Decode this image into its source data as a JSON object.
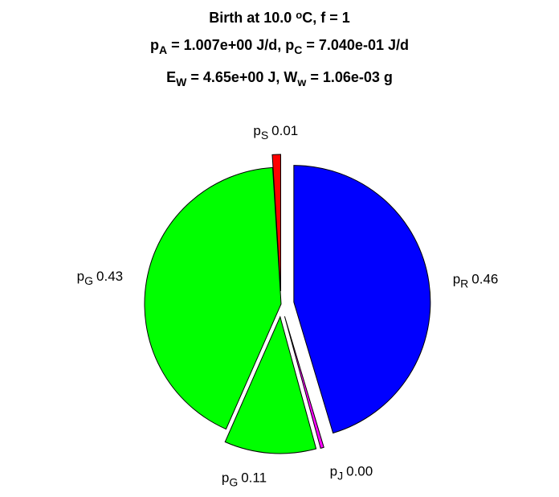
{
  "chart_data": {
    "type": "pie",
    "title": [
      [
        {
          "text": "Birth at 10.0 "
        },
        {
          "text": "o",
          "shift": "sup"
        },
        {
          "text": "C, f = 1"
        }
      ],
      [
        {
          "text": "p"
        },
        {
          "text": "A",
          "shift": "sub"
        },
        {
          "text": " = 1.007e+00 J/d, p"
        },
        {
          "text": "C",
          "shift": "sub"
        },
        {
          "text": " = 7.040e-01 J/d"
        }
      ],
      [
        {
          "text": "E"
        },
        {
          "text": "W",
          "shift": "sub"
        },
        {
          "text": " = 4.65e+00 J, W"
        },
        {
          "text": "w",
          "shift": "sub"
        },
        {
          "text": " = 1.06e-03 g"
        }
      ]
    ],
    "categories": [
      "pS",
      "pR",
      "pJ",
      "pG",
      "pG"
    ],
    "values": [
      0.01,
      0.46,
      0.004,
      0.11,
      0.43
    ],
    "value_labels": [
      "0.01",
      "0.46",
      "0.00",
      "0.11",
      "0.43"
    ],
    "colors": [
      "#ff0000",
      "#0000ff",
      "#ff00ff",
      "#00ff00",
      "#00ff00"
    ],
    "explode": [
      1,
      1,
      1,
      1,
      0
    ]
  }
}
